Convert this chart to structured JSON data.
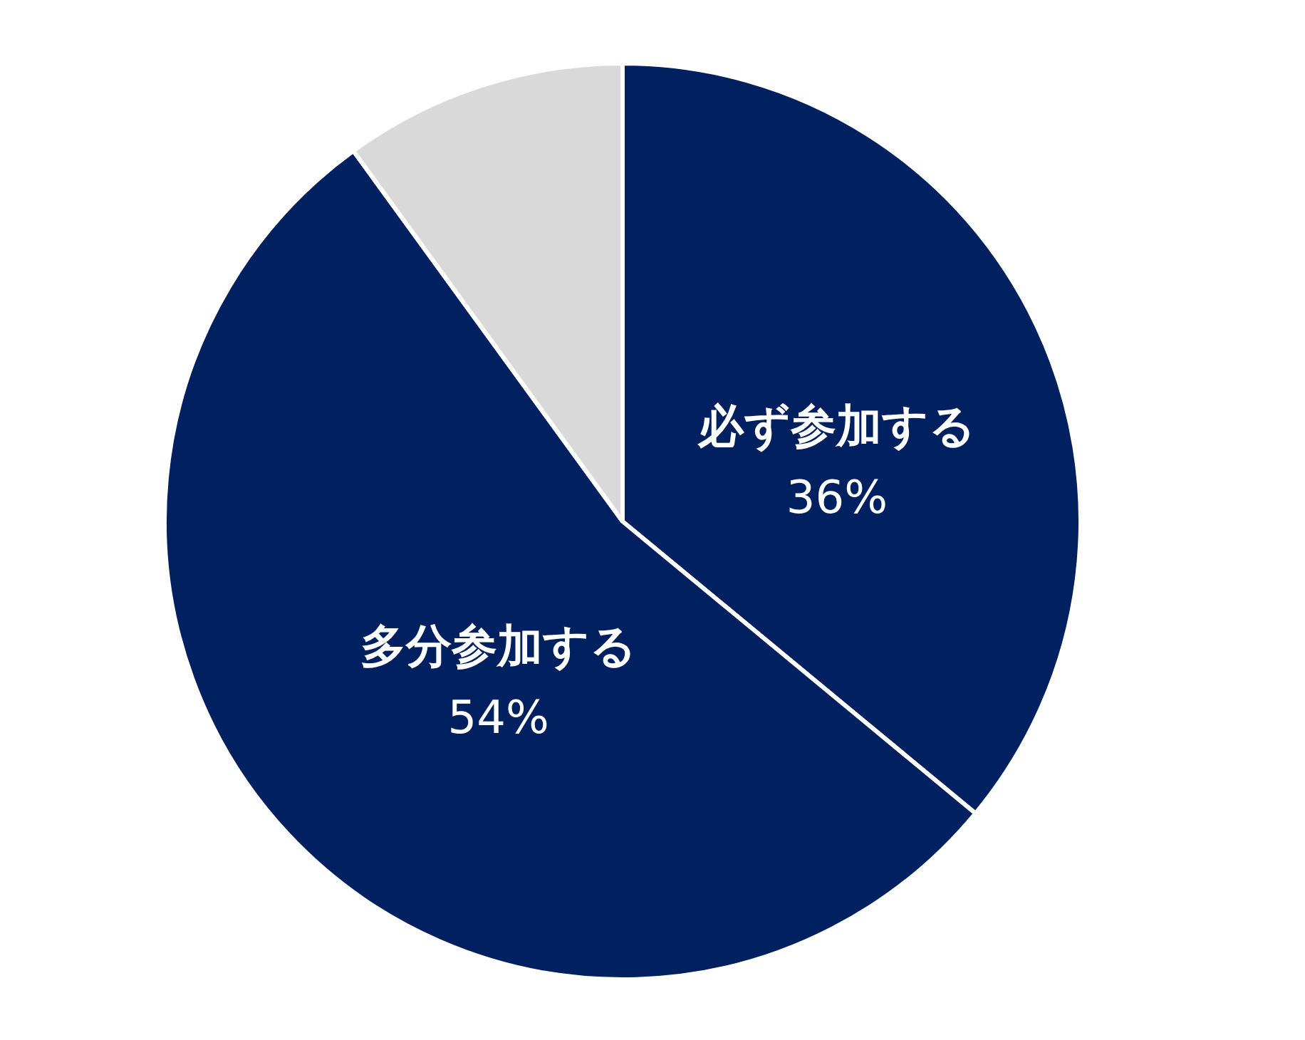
{
  "chart_data": {
    "type": "pie",
    "categories": [
      "必ず参加する",
      "多分参加する",
      null
    ],
    "values": [
      36,
      54,
      10
    ],
    "colors": [
      "#002060",
      "#002060",
      "#d9d9d9"
    ],
    "value_labels": [
      "36%",
      "54%",
      null
    ],
    "legend": false
  }
}
